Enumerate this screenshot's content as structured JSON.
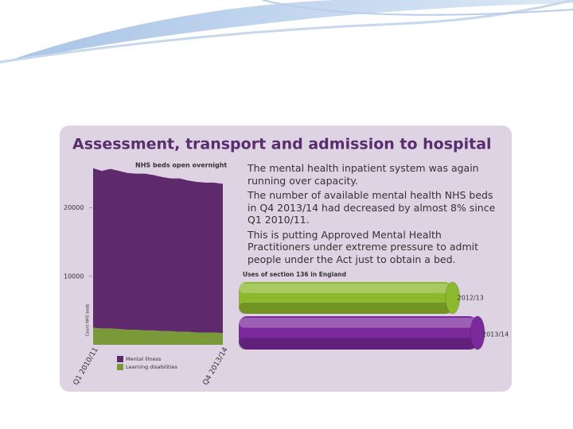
{
  "title": "Assessment, transport and admission to hospital",
  "paragraphs": [
    "The mental health inpatient system was again running over capacity.",
    "The number of available mental health NHS beds in Q4 2013/14 had decreased by almost 8% since Q1 2010/11.",
    "This is putting Approved Mental Health Practitioners under extreme pressure to admit people under the Act just to obtain a bed."
  ],
  "chart_data": [
    {
      "type": "area",
      "stacked": true,
      "title": "NHS beds open overnight",
      "y_label": "Count NHS beds",
      "categories": [
        "Q1 2010/11",
        null,
        null,
        null,
        null,
        null,
        null,
        null,
        null,
        null,
        null,
        null,
        null,
        null,
        null,
        "Q4 2013/14"
      ],
      "series": [
        {
          "name": "Learning disabilities",
          "color": "#7a9a3a",
          "values": [
            2500,
            2400,
            2400,
            2300,
            2200,
            2200,
            2100,
            2100,
            2000,
            2000,
            1900,
            1900,
            1800,
            1800,
            1800,
            1700
          ]
        },
        {
          "name": "Mental illness",
          "color": "#5e2a6b",
          "values": [
            23300,
            23000,
            23300,
            23100,
            22900,
            22800,
            22900,
            22700,
            22500,
            22300,
            22400,
            22100,
            22000,
            21900,
            21900,
            21800
          ]
        }
      ],
      "ylim": [
        0,
        26000
      ],
      "yticks": [
        10000,
        20000
      ]
    },
    {
      "type": "cylinder",
      "title": "Uses of section 136 in England",
      "categories": [
        "2012/13",
        "2013/14"
      ],
      "values": [
        21814,
        24361
      ],
      "colors": [
        "#8cb82e",
        "#7a2a9a"
      ]
    }
  ]
}
